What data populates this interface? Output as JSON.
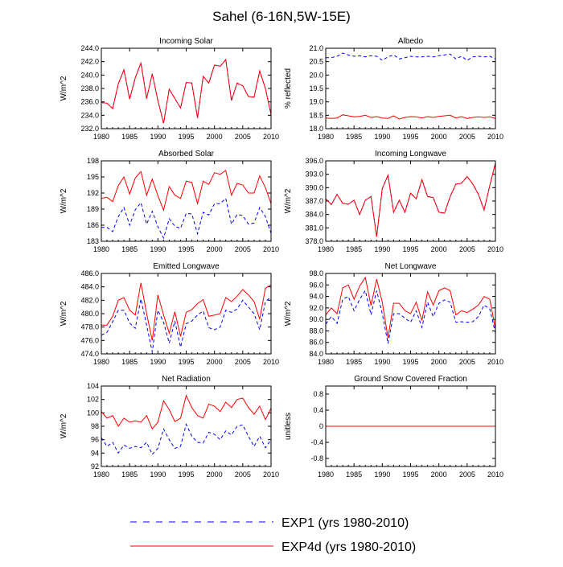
{
  "page_title": "Sahel (6-16N,5W-15E)",
  "legend": {
    "entries": [
      {
        "label": "EXP1 (yrs 1980-2010)",
        "color": "#0000ff",
        "dashed": true
      },
      {
        "label": "EXP4d (yrs 1980-2010)",
        "color": "#ff0000",
        "dashed": false
      }
    ]
  },
  "chart_data": [
    {
      "type": "line",
      "title": "Incoming Solar",
      "ylabel": "W/m^2",
      "xlim": [
        1980,
        2010
      ],
      "ylim": [
        232.0,
        244.0
      ],
      "xticks": [
        1980,
        1985,
        1990,
        1995,
        2000,
        2005,
        2010
      ],
      "yticks": [
        "232.0",
        "234.0",
        "236.0",
        "238.0",
        "240.0",
        "242.0",
        "244.0"
      ],
      "x": [
        1980,
        1981,
        1982,
        1983,
        1984,
        1985,
        1986,
        1987,
        1988,
        1989,
        1990,
        1991,
        1992,
        1993,
        1994,
        1995,
        1996,
        1997,
        1998,
        1999,
        2000,
        2001,
        2002,
        2003,
        2004,
        2005,
        2006,
        2007,
        2008,
        2009,
        2010
      ],
      "series": [
        {
          "name": "EXP1 (yrs 1980-2010)",
          "values": [
            235.9,
            235.8,
            235.0,
            238.7,
            240.8,
            236.4,
            239.6,
            241.8,
            236.5,
            240.2,
            236.2,
            232.8,
            237.9,
            236.5,
            235.1,
            238.9,
            238.8,
            233.6,
            239.8,
            238.8,
            241.5,
            241.3,
            242.3,
            236.2,
            238.8,
            238.4,
            236.8,
            236.7,
            240.6,
            238.0,
            234.1
          ]
        },
        {
          "name": "EXP4d (yrs 1980-2010)",
          "values": [
            235.9,
            235.8,
            235.0,
            238.7,
            240.8,
            236.4,
            239.6,
            241.8,
            236.5,
            240.2,
            236.2,
            232.8,
            237.9,
            236.5,
            235.1,
            238.9,
            238.8,
            233.6,
            239.8,
            238.8,
            241.5,
            241.3,
            242.3,
            236.2,
            238.8,
            238.4,
            236.8,
            236.7,
            240.6,
            238.0,
            234.1
          ]
        }
      ]
    },
    {
      "type": "line",
      "title": "Albedo",
      "ylabel": "% reflected",
      "xlim": [
        1980,
        2010
      ],
      "ylim": [
        18.0,
        21.0
      ],
      "xticks": [
        1980,
        1985,
        1990,
        1995,
        2000,
        2005,
        2010
      ],
      "yticks": [
        "18.0",
        "18.5",
        "19.0",
        "19.5",
        "20.0",
        "20.5",
        "21.0"
      ],
      "x": [
        1980,
        1981,
        1982,
        1983,
        1984,
        1985,
        1986,
        1987,
        1988,
        1989,
        1990,
        1991,
        1992,
        1993,
        1994,
        1995,
        1996,
        1997,
        1998,
        1999,
        2000,
        2001,
        2002,
        2003,
        2004,
        2005,
        2006,
        2007,
        2008,
        2009,
        2010
      ],
      "series": [
        {
          "name": "EXP1 (yrs 1980-2010)",
          "values": [
            20.65,
            20.65,
            20.7,
            20.82,
            20.75,
            20.7,
            20.72,
            20.68,
            20.72,
            20.7,
            20.55,
            20.68,
            20.75,
            20.6,
            20.65,
            20.7,
            20.68,
            20.68,
            20.7,
            20.68,
            20.72,
            20.75,
            20.78,
            20.6,
            20.7,
            20.55,
            20.68,
            20.7,
            20.68,
            20.7,
            20.6
          ]
        },
        {
          "name": "EXP4d (yrs 1980-2010)",
          "values": [
            18.4,
            18.38,
            18.4,
            18.52,
            18.48,
            18.44,
            18.46,
            18.5,
            18.42,
            18.45,
            18.4,
            18.38,
            18.48,
            18.36,
            18.42,
            18.45,
            18.44,
            18.4,
            18.45,
            18.42,
            18.46,
            18.48,
            18.5,
            18.4,
            18.45,
            18.38,
            18.42,
            18.44,
            18.42,
            18.44,
            18.38
          ]
        }
      ]
    },
    {
      "type": "line",
      "title": "Absorbed Solar",
      "ylabel": "W/m^2",
      "xlim": [
        1980,
        2010
      ],
      "ylim": [
        183,
        198
      ],
      "xticks": [
        1980,
        1985,
        1990,
        1995,
        2000,
        2005,
        2010
      ],
      "yticks": [
        "183",
        "186",
        "189",
        "192",
        "195",
        "198"
      ],
      "x": [
        1980,
        1981,
        1982,
        1983,
        1984,
        1985,
        1986,
        1987,
        1988,
        1989,
        1990,
        1991,
        1992,
        1993,
        1994,
        1995,
        1996,
        1997,
        1998,
        1999,
        2000,
        2001,
        2002,
        2003,
        2004,
        2005,
        2006,
        2007,
        2008,
        2009,
        2010
      ],
      "series": [
        {
          "name": "EXP1 (yrs 1980-2010)",
          "values": [
            185.6,
            185.6,
            184.8,
            187.6,
            189.3,
            186.0,
            188.9,
            190.2,
            186.2,
            188.6,
            185.7,
            183.6,
            187.2,
            185.8,
            185.4,
            188.2,
            188.1,
            184.4,
            188.4,
            187.9,
            190.0,
            190.0,
            191.0,
            186.2,
            188.0,
            187.8,
            186.2,
            186.4,
            189.3,
            187.6,
            184.5
          ]
        },
        {
          "name": "EXP4d (yrs 1980-2010)",
          "values": [
            191.0,
            191.2,
            190.4,
            193.4,
            195.0,
            191.8,
            194.8,
            196.0,
            191.6,
            194.6,
            191.5,
            188.8,
            193.2,
            191.6,
            191.0,
            194.2,
            194.0,
            190.0,
            194.2,
            193.6,
            195.8,
            195.5,
            196.2,
            191.6,
            193.8,
            193.5,
            192.0,
            192.0,
            195.2,
            193.0,
            190.0
          ]
        }
      ]
    },
    {
      "type": "line",
      "title": "Incoming Longwave",
      "ylabel": "W/m^2",
      "xlim": [
        1980,
        2010
      ],
      "ylim": [
        378.0,
        396.0
      ],
      "xticks": [
        1980,
        1985,
        1990,
        1995,
        2000,
        2005,
        2010
      ],
      "yticks": [
        "378.0",
        "381.0",
        "384.0",
        "387.0",
        "390.0",
        "393.0",
        "396.0"
      ],
      "x": [
        1980,
        1981,
        1982,
        1983,
        1984,
        1985,
        1986,
        1987,
        1988,
        1989,
        1990,
        1991,
        1992,
        1993,
        1994,
        1995,
        1996,
        1997,
        1998,
        1999,
        2000,
        2001,
        2002,
        2003,
        2004,
        2005,
        2006,
        2007,
        2008,
        2009,
        2010
      ],
      "series": [
        {
          "name": "EXP1 (yrs 1980-2010)",
          "values": [
            387.5,
            386.2,
            388.5,
            386.5,
            386.3,
            387.2,
            384.0,
            387.2,
            388.0,
            379.0,
            389.8,
            392.8,
            384.5,
            387.2,
            384.5,
            388.8,
            387.5,
            391.8,
            388.0,
            387.8,
            384.5,
            384.3,
            388.0,
            390.8,
            391.0,
            392.5,
            390.8,
            388.5,
            385.0,
            390.5,
            395.5
          ]
        },
        {
          "name": "EXP4d (yrs 1980-2010)",
          "values": [
            387.5,
            386.2,
            388.5,
            386.5,
            386.3,
            387.2,
            384.0,
            387.2,
            388.0,
            379.0,
            389.8,
            392.8,
            384.5,
            387.2,
            384.5,
            388.8,
            387.5,
            391.8,
            388.0,
            387.8,
            384.5,
            384.3,
            388.0,
            390.8,
            391.0,
            392.5,
            390.8,
            388.5,
            385.0,
            390.5,
            395.5
          ]
        }
      ]
    },
    {
      "type": "line",
      "title": "Emitted Longwave",
      "ylabel": "W/m^2",
      "xlim": [
        1980,
        2010
      ],
      "ylim": [
        474.0,
        486.0
      ],
      "xticks": [
        1980,
        1985,
        1990,
        1995,
        2000,
        2005,
        2010
      ],
      "yticks": [
        "474.0",
        "476.0",
        "478.0",
        "480.0",
        "482.0",
        "484.0",
        "486.0"
      ],
      "x": [
        1980,
        1981,
        1982,
        1983,
        1984,
        1985,
        1986,
        1987,
        1988,
        1989,
        1990,
        1991,
        1992,
        1993,
        1994,
        1995,
        1996,
        1997,
        1998,
        1999,
        2000,
        2001,
        2002,
        2003,
        2004,
        2005,
        2006,
        2007,
        2008,
        2009,
        2010
      ],
      "series": [
        {
          "name": "EXP1 (yrs 1980-2010)",
          "values": [
            476.8,
            477.2,
            478.8,
            480.5,
            480.5,
            478.6,
            477.8,
            482.2,
            478.3,
            474.3,
            480.5,
            478.7,
            475.6,
            478.9,
            475.0,
            478.5,
            478.9,
            479.8,
            480.4,
            477.9,
            477.6,
            478.0,
            480.5,
            480.2,
            480.7,
            482.0,
            481.0,
            480.0,
            477.6,
            481.8,
            482.5
          ]
        },
        {
          "name": "EXP4d (yrs 1980-2010)",
          "values": [
            478.3,
            478.3,
            479.6,
            482.0,
            482.4,
            480.5,
            479.8,
            484.6,
            480.0,
            476.0,
            482.8,
            479.8,
            477.1,
            480.3,
            476.6,
            480.2,
            480.6,
            481.5,
            482.1,
            479.6,
            479.8,
            480.0,
            482.4,
            481.8,
            482.6,
            483.6,
            482.8,
            481.8,
            479.2,
            483.8,
            484.3
          ]
        }
      ]
    },
    {
      "type": "line",
      "title": "Net Longwave",
      "ylabel": "W/m^2",
      "xlim": [
        1980,
        2010
      ],
      "ylim": [
        84.0,
        98.0
      ],
      "xticks": [
        1980,
        1985,
        1990,
        1995,
        2000,
        2005,
        2010
      ],
      "yticks": [
        "84.0",
        "86.0",
        "88.0",
        "90.0",
        "92.0",
        "94.0",
        "96.0",
        "98.0"
      ],
      "x": [
        1980,
        1981,
        1982,
        1983,
        1984,
        1985,
        1986,
        1987,
        1988,
        1989,
        1990,
        1991,
        1992,
        1993,
        1994,
        1995,
        1996,
        1997,
        1998,
        1999,
        2000,
        2001,
        2002,
        2003,
        2004,
        2005,
        2006,
        2007,
        2008,
        2009,
        2010
      ],
      "series": [
        {
          "name": "EXP1 (yrs 1980-2010)",
          "values": [
            89.2,
            90.5,
            89.3,
            93.5,
            94.0,
            91.5,
            93.5,
            95.0,
            90.8,
            95.0,
            91.0,
            85.8,
            91.0,
            91.0,
            90.2,
            89.5,
            91.5,
            88.6,
            93.0,
            90.5,
            92.8,
            93.4,
            93.0,
            89.5,
            89.6,
            89.5,
            89.6,
            90.5,
            92.5,
            91.8,
            87.6
          ]
        },
        {
          "name": "EXP4d (yrs 1980-2010)",
          "values": [
            90.8,
            92.0,
            91.0,
            95.5,
            96.0,
            93.5,
            95.8,
            97.3,
            92.4,
            97.0,
            93.0,
            86.8,
            92.8,
            92.8,
            91.5,
            91.0,
            93.0,
            89.8,
            94.8,
            92.5,
            95.0,
            95.5,
            95.0,
            90.8,
            91.5,
            91.2,
            91.8,
            92.5,
            94.0,
            93.5,
            88.3
          ]
        }
      ]
    },
    {
      "type": "line",
      "title": "Net Radiation",
      "ylabel": "W/m^2",
      "xlim": [
        1980,
        2010
      ],
      "ylim": [
        92,
        104
      ],
      "xticks": [
        1980,
        1985,
        1990,
        1995,
        2000,
        2005,
        2010
      ],
      "yticks": [
        "92",
        "94",
        "96",
        "98",
        "100",
        "102",
        "104"
      ],
      "x": [
        1980,
        1981,
        1982,
        1983,
        1984,
        1985,
        1986,
        1987,
        1988,
        1989,
        1990,
        1991,
        1992,
        1993,
        1994,
        1995,
        1996,
        1997,
        1998,
        1999,
        2000,
        2001,
        2002,
        2003,
        2004,
        2005,
        2006,
        2007,
        2008,
        2009,
        2010
      ],
      "series": [
        {
          "name": "EXP1 (yrs 1980-2010)",
          "values": [
            96.3,
            95.0,
            95.6,
            94.0,
            95.2,
            94.7,
            95.0,
            94.8,
            95.6,
            93.8,
            94.7,
            97.6,
            96.0,
            94.7,
            95.0,
            98.3,
            96.5,
            95.6,
            95.5,
            97.1,
            96.8,
            96.0,
            97.3,
            96.7,
            98.0,
            98.2,
            96.5,
            95.0,
            96.5,
            94.8,
            96.0
          ]
        },
        {
          "name": "EXP4d (yrs 1980-2010)",
          "values": [
            100.2,
            99.2,
            99.6,
            98.0,
            99.2,
            98.6,
            98.8,
            98.6,
            99.6,
            97.6,
            98.6,
            101.8,
            100.5,
            98.7,
            99.2,
            102.6,
            100.8,
            99.6,
            99.2,
            101.3,
            101.0,
            100.2,
            101.6,
            100.8,
            102.0,
            102.2,
            100.8,
            99.8,
            101.0,
            99.0,
            100.7
          ]
        }
      ]
    },
    {
      "type": "line",
      "title": "Ground Snow Covered Fraction",
      "ylabel": "unitless",
      "xlim": [
        1980,
        2010
      ],
      "ylim": [
        -1.0,
        1.0
      ],
      "xticks": [
        1980,
        1985,
        1990,
        1995,
        2000,
        2005,
        2010
      ],
      "yticks": [
        "-0.8",
        "-0.4",
        "0",
        "0.4",
        "0.8"
      ],
      "ytick_values": [
        -0.8,
        -0.4,
        0,
        0.4,
        0.8
      ],
      "x": [
        1980,
        1981,
        1982,
        1983,
        1984,
        1985,
        1986,
        1987,
        1988,
        1989,
        1990,
        1991,
        1992,
        1993,
        1994,
        1995,
        1996,
        1997,
        1998,
        1999,
        2000,
        2001,
        2002,
        2003,
        2004,
        2005,
        2006,
        2007,
        2008,
        2009,
        2010
      ],
      "series": [
        {
          "name": "EXP1 (yrs 1980-2010)",
          "values": [
            0,
            0,
            0,
            0,
            0,
            0,
            0,
            0,
            0,
            0,
            0,
            0,
            0,
            0,
            0,
            0,
            0,
            0,
            0,
            0,
            0,
            0,
            0,
            0,
            0,
            0,
            0,
            0,
            0,
            0,
            0
          ]
        },
        {
          "name": "EXP4d (yrs 1980-2010)",
          "values": [
            0,
            0,
            0,
            0,
            0,
            0,
            0,
            0,
            0,
            0,
            0,
            0,
            0,
            0,
            0,
            0,
            0,
            0,
            0,
            0,
            0,
            0,
            0,
            0,
            0,
            0,
            0,
            0,
            0,
            0,
            0
          ]
        }
      ]
    }
  ]
}
